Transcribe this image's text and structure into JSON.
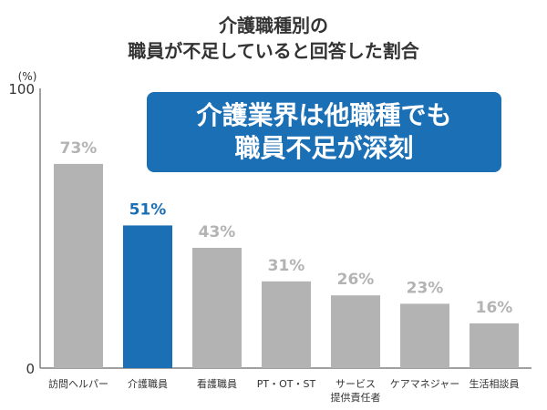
{
  "title_lines": [
    "介護職種別の",
    "職員が不足していると回答した割合"
  ],
  "callout": {
    "lines": [
      "介護業界は他職種でも",
      "職員不足が深刻"
    ],
    "bg_color": "#1a6fb5"
  },
  "colors": {
    "highlight": "#1a6fb5",
    "bar": "#b3b3b3",
    "axis": "#808080",
    "axis_text": "#333333"
  },
  "chart_data": {
    "type": "bar",
    "title": "介護職種別の 職員が不足していると回答した割合",
    "unit_label": "(%)",
    "ylim": [
      0,
      100
    ],
    "y_ticks": [
      0,
      100
    ],
    "grid": false,
    "categories": [
      [
        "訪問ヘルパー"
      ],
      [
        "介護職員"
      ],
      [
        "看護職員"
      ],
      [
        "PT・OT・ST"
      ],
      [
        "サービス",
        "提供責任者"
      ],
      [
        "ケアマネジャー"
      ],
      [
        "生活相談員"
      ]
    ],
    "values": [
      73,
      51,
      43,
      31,
      26,
      23,
      16
    ],
    "data_labels": [
      "73%",
      "51%",
      "43%",
      "31%",
      "26%",
      "23%",
      "16%"
    ],
    "highlight_index": 1
  }
}
